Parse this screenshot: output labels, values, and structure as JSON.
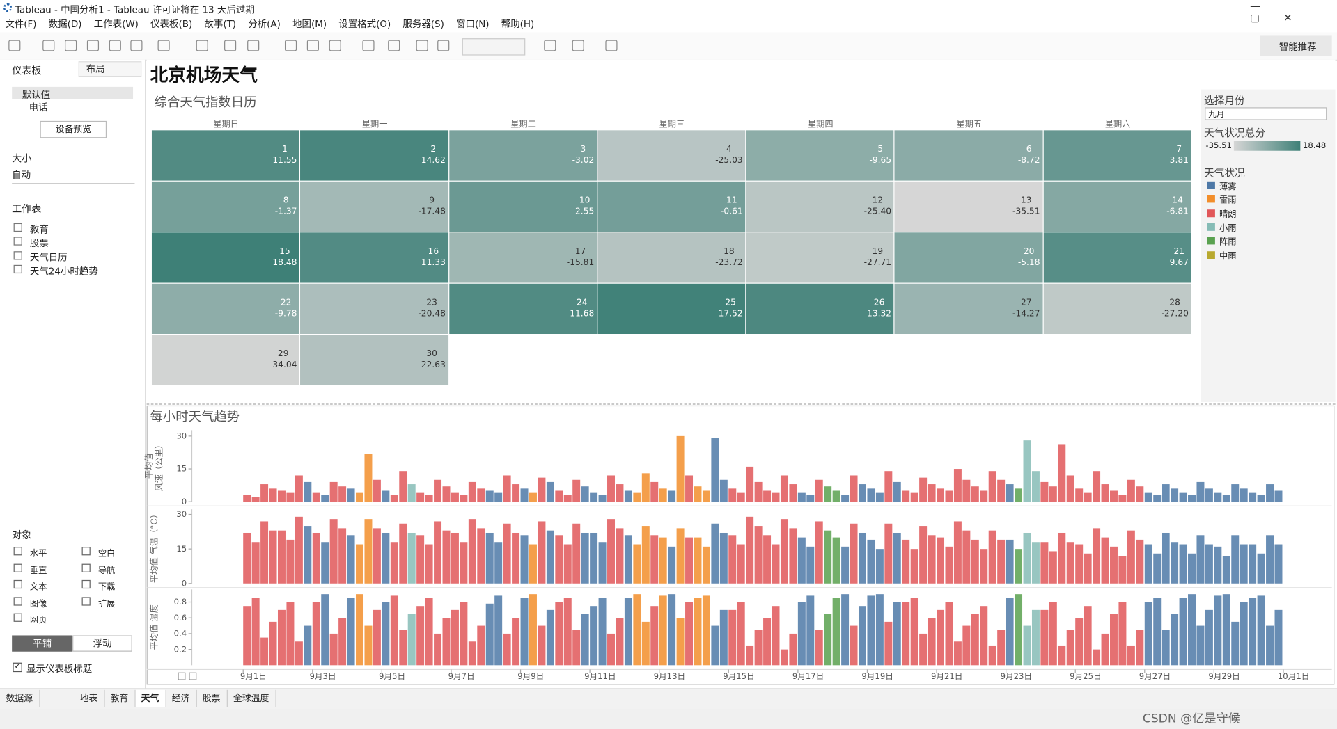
{
  "window": {
    "title": "Tableau - 中国分析1 - Tableau 许可证将在 13 天后过期"
  },
  "menu": [
    "文件(F)",
    "数据(D)",
    "工作表(W)",
    "仪表板(B)",
    "故事(T)",
    "分析(A)",
    "地图(M)",
    "设置格式(O)",
    "服务器(S)",
    "窗口(N)",
    "帮助(H)"
  ],
  "toolbar": {
    "smart": "智能推荐"
  },
  "left": {
    "tab": "仪表板",
    "layout": "布局",
    "devices": [
      "默认值",
      "电话"
    ],
    "preview": "设备预览",
    "size_title": "大小",
    "size": "自动",
    "sheets_title": "工作表",
    "sheets": [
      "教育",
      "股票",
      "天气日历",
      "天气24小时趋势"
    ],
    "objects_title": "对象",
    "objects": [
      "水平",
      "空白",
      "垂直",
      "导航",
      "文本",
      "下载",
      "图像",
      "扩展",
      "网页"
    ],
    "tile": "平铺",
    "float": "浮动",
    "show_title": "显示仪表板标题"
  },
  "dashboard": {
    "title": "北京机场天气"
  },
  "calendar": {
    "title": "综合天气指数日历",
    "weekdays": [
      "星期日",
      "星期一",
      "星期二",
      "星期三",
      "星期四",
      "星期五",
      "星期六"
    ],
    "days": [
      1,
      2,
      3,
      4,
      5,
      6,
      7,
      8,
      9,
      10,
      11,
      12,
      13,
      14,
      15,
      16,
      17,
      18,
      19,
      20,
      21,
      22,
      23,
      24,
      25,
      26,
      27,
      28,
      29,
      30
    ],
    "values": [
      11.55,
      14.62,
      -3.02,
      -25.03,
      -9.65,
      -8.72,
      3.81,
      -1.37,
      -17.48,
      2.55,
      -0.61,
      -25.4,
      -35.51,
      -6.81,
      18.48,
      11.33,
      -15.81,
      -23.72,
      -27.71,
      -5.18,
      9.67,
      -9.78,
      -20.48,
      11.68,
      17.52,
      13.32,
      -14.27,
      -27.2,
      -34.04,
      -22.63
    ],
    "value_labels": [
      "11.55",
      "14.62",
      "-3.02",
      "-25.03",
      "-9.65",
      "-8.72",
      "3.81",
      "-1.37",
      "-17.48",
      "2.55",
      "-0.61",
      "-25.40",
      "-35.51",
      "-6.81",
      "18.48",
      "11.33",
      "-15.81",
      "-23.72",
      "-27.71",
      "-5.18",
      "9.67",
      "-9.78",
      "-20.48",
      "11.68",
      "17.52",
      "13.32",
      "-14.27",
      "-27.20",
      "-34.04",
      "-22.63"
    ]
  },
  "filters": {
    "month_title": "选择月份",
    "month": "九月",
    "score_title": "天气状况总分",
    "score_range": [
      -35.51,
      18.48
    ],
    "score_colors": [
      "#d6d6d6",
      "#3e8077"
    ],
    "weather_title": "天气状况",
    "weather": [
      {
        "name": "薄雾",
        "color": "#4e79a7"
      },
      {
        "name": "雷雨",
        "color": "#f28e2b"
      },
      {
        "name": "晴朗",
        "color": "#e15759"
      },
      {
        "name": "小雨",
        "color": "#86bcb6"
      },
      {
        "name": "阵雨",
        "color": "#59a14f"
      },
      {
        "name": "中雨",
        "color": "#b8a92f"
      }
    ]
  },
  "hourly": {
    "title": "每小时天气趋势",
    "hours": [
      0,
      6,
      12,
      18
    ],
    "xlim": [
      -0.48,
      32.4
    ],
    "xticks": [
      {
        "value": 1,
        "label": "9月1日"
      },
      {
        "value": 3,
        "label": "9月3日"
      },
      {
        "value": 5,
        "label": "9月5日"
      },
      {
        "value": 7,
        "label": "9月7日"
      },
      {
        "value": 9,
        "label": "9月9日"
      },
      {
        "value": 11,
        "label": "9月11日"
      },
      {
        "value": 13,
        "label": "9月13日"
      },
      {
        "value": 15,
        "label": "9月15日"
      },
      {
        "value": 17,
        "label": "9月17日"
      },
      {
        "value": 19,
        "label": "9月19日"
      },
      {
        "value": 21,
        "label": "9月21日"
      },
      {
        "value": 23,
        "label": "9月23日"
      },
      {
        "value": 25,
        "label": "9月25日"
      },
      {
        "value": 27,
        "label": "9月27日"
      },
      {
        "value": 29,
        "label": "9月29日"
      },
      {
        "value": 31,
        "label": "10月1日"
      }
    ],
    "weather": [
      2,
      2,
      2,
      2,
      2,
      2,
      2,
      0,
      2,
      0,
      2,
      2,
      0,
      1,
      1,
      2,
      0,
      2,
      2,
      3,
      2,
      2,
      2,
      2,
      2,
      2,
      2,
      2,
      0,
      0,
      2,
      2,
      0,
      1,
      2,
      0,
      2,
      2,
      2,
      0,
      0,
      0,
      2,
      2,
      0,
      1,
      1,
      2,
      1,
      0,
      1,
      2,
      1,
      1,
      0,
      0,
      2,
      2,
      2,
      2,
      2,
      2,
      2,
      2,
      0,
      0,
      2,
      4,
      4,
      0,
      2,
      0,
      0,
      0,
      2,
      0,
      2,
      2,
      2,
      2,
      2,
      2,
      2,
      2,
      2,
      2,
      2,
      2,
      0,
      4,
      3,
      3,
      2,
      2,
      2,
      2,
      2,
      2,
      2,
      2,
      2,
      2,
      2,
      2,
      0,
      0,
      0,
      0,
      0,
      0,
      0,
      0,
      0,
      0,
      0,
      0,
      0,
      0,
      0,
      0
    ],
    "panels": [
      {
        "label": [
          "平均值",
          "风速（公里）"
        ],
        "ylim": [
          0,
          32.7
        ],
        "yticks": [
          0,
          15,
          30
        ],
        "values": [
          3,
          2,
          8,
          6,
          5,
          4,
          12,
          9,
          4,
          3,
          9,
          7,
          6,
          4,
          22,
          10,
          5,
          3,
          14,
          8,
          4,
          3,
          10,
          7,
          4,
          3,
          9,
          6,
          5,
          4,
          12,
          8,
          6,
          4,
          11,
          9,
          5,
          3,
          10,
          7,
          4,
          3,
          12,
          8,
          5,
          4,
          13,
          9,
          6,
          5,
          30,
          12,
          7,
          5,
          29,
          10,
          6,
          4,
          16,
          9,
          5,
          4,
          12,
          8,
          4,
          3,
          10,
          7,
          5,
          3,
          12,
          8,
          6,
          4,
          14,
          9,
          5,
          4,
          11,
          8,
          6,
          5,
          15,
          10,
          7,
          5,
          14,
          10,
          8,
          6,
          28,
          14,
          9,
          7,
          26,
          12,
          6,
          4,
          14,
          8,
          5,
          3,
          10,
          7,
          4,
          3,
          8,
          6,
          4,
          3,
          9,
          6,
          4,
          3,
          8,
          6,
          4,
          3,
          8,
          5
        ]
      },
      {
        "label": [
          "平均值 气温（°C）"
        ],
        "ylim": [
          0,
          32.2
        ],
        "yticks": [
          0,
          15,
          30
        ],
        "values": [
          22,
          18,
          27,
          23,
          23,
          19,
          29,
          25,
          22,
          18,
          28,
          24,
          21,
          17,
          28,
          24,
          22,
          18,
          26,
          22,
          21,
          17,
          27,
          23,
          22,
          18,
          28,
          24,
          22,
          18,
          26,
          22,
          21,
          17,
          27,
          23,
          21,
          17,
          26,
          22,
          22,
          18,
          28,
          24,
          21,
          17,
          25,
          21,
          20,
          16,
          24,
          20,
          20,
          16,
          26,
          22,
          21,
          17,
          29,
          25,
          21,
          17,
          28,
          24,
          20,
          16,
          27,
          23,
          20,
          16,
          26,
          22,
          19,
          15,
          26,
          22,
          19,
          15,
          25,
          21,
          20,
          16,
          27,
          23,
          19,
          15,
          23,
          19,
          19,
          15,
          22,
          18,
          18,
          14,
          22,
          18,
          17,
          13,
          24,
          20,
          16,
          12,
          23,
          19,
          17,
          13,
          22,
          18,
          17,
          13,
          21,
          17,
          16,
          12,
          21,
          17,
          17,
          13,
          21,
          17
        ]
      },
      {
        "label": [
          "平均值 湿度"
        ],
        "ylim": [
          0,
          0.96
        ],
        "yticks": [
          0.2,
          0.4,
          0.6,
          0.8
        ],
        "values": [
          0.75,
          0.85,
          0.35,
          0.55,
          0.7,
          0.8,
          0.3,
          0.5,
          0.8,
          0.9,
          0.4,
          0.6,
          0.85,
          0.9,
          0.5,
          0.7,
          0.8,
          0.88,
          0.45,
          0.65,
          0.75,
          0.85,
          0.4,
          0.6,
          0.7,
          0.8,
          0.3,
          0.5,
          0.78,
          0.88,
          0.4,
          0.6,
          0.85,
          0.9,
          0.5,
          0.7,
          0.8,
          0.85,
          0.45,
          0.65,
          0.75,
          0.85,
          0.4,
          0.6,
          0.85,
          0.9,
          0.55,
          0.75,
          0.88,
          0.9,
          0.6,
          0.8,
          0.85,
          0.88,
          0.5,
          0.7,
          0.7,
          0.8,
          0.25,
          0.45,
          0.6,
          0.75,
          0.2,
          0.4,
          0.8,
          0.88,
          0.45,
          0.65,
          0.85,
          0.9,
          0.5,
          0.75,
          0.88,
          0.9,
          0.55,
          0.8,
          0.8,
          0.85,
          0.4,
          0.6,
          0.7,
          0.8,
          0.3,
          0.5,
          0.65,
          0.75,
          0.25,
          0.45,
          0.85,
          0.9,
          0.5,
          0.7,
          0.7,
          0.8,
          0.25,
          0.45,
          0.6,
          0.75,
          0.2,
          0.4,
          0.65,
          0.8,
          0.25,
          0.45,
          0.8,
          0.85,
          0.45,
          0.65,
          0.85,
          0.9,
          0.5,
          0.7,
          0.88,
          0.9,
          0.55,
          0.8,
          0.85,
          0.88,
          0.5,
          0.7
        ]
      }
    ]
  },
  "tabs": [
    "数据源",
    "地表",
    "教育",
    "天气",
    "经济",
    "股票",
    "全球温度"
  ],
  "status": {
    "watermark": "CSDN @亿是守候"
  }
}
